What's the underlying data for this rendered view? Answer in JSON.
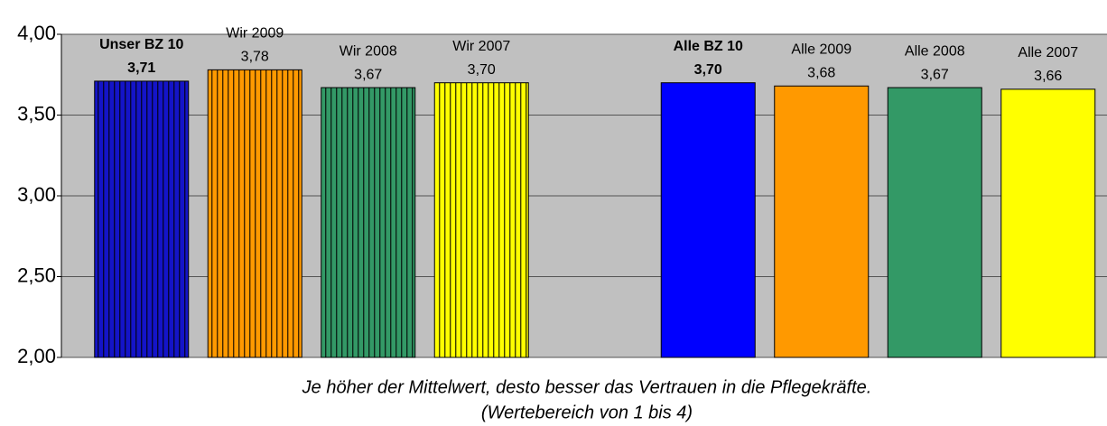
{
  "chart_data": {
    "type": "bar",
    "categories": [
      "Unser BZ 10",
      "Wir 2009",
      "Wir 2008",
      "Wir 2007",
      null,
      "Alle BZ 10",
      "Alle 2009",
      "Alle 2008",
      "Alle 2007"
    ],
    "values": [
      3.71,
      3.78,
      3.67,
      3.7,
      null,
      3.7,
      3.68,
      3.67,
      3.66
    ],
    "value_labels": [
      "3,71",
      "3,78",
      "3,67",
      "3,70",
      null,
      "3,70",
      "3,68",
      "3,67",
      "3,66"
    ],
    "colors": [
      "#1414c8",
      "#ff9900",
      "#339966",
      "#ffff00",
      null,
      "#0000ff",
      "#ff9900",
      "#339966",
      "#ffff00"
    ],
    "hatched": [
      true,
      true,
      true,
      true,
      null,
      false,
      false,
      false,
      false
    ],
    "bold": [
      true,
      false,
      false,
      false,
      null,
      true,
      false,
      false,
      false
    ],
    "ylim": [
      2,
      4
    ],
    "yticks": [
      {
        "value": 2,
        "label": "2,00"
      },
      {
        "value": 2.5,
        "label": "2,50"
      },
      {
        "value": 3,
        "label": "3,00"
      },
      {
        "value": 3.5,
        "label": "3,50"
      },
      {
        "value": 4,
        "label": "4,00"
      }
    ],
    "grid": true,
    "caption": [
      "Je höher der Mittelwert, desto besser das Vertrauen in die Pflegekräfte.",
      "(Wertebereich von 1 bis 4)"
    ]
  }
}
